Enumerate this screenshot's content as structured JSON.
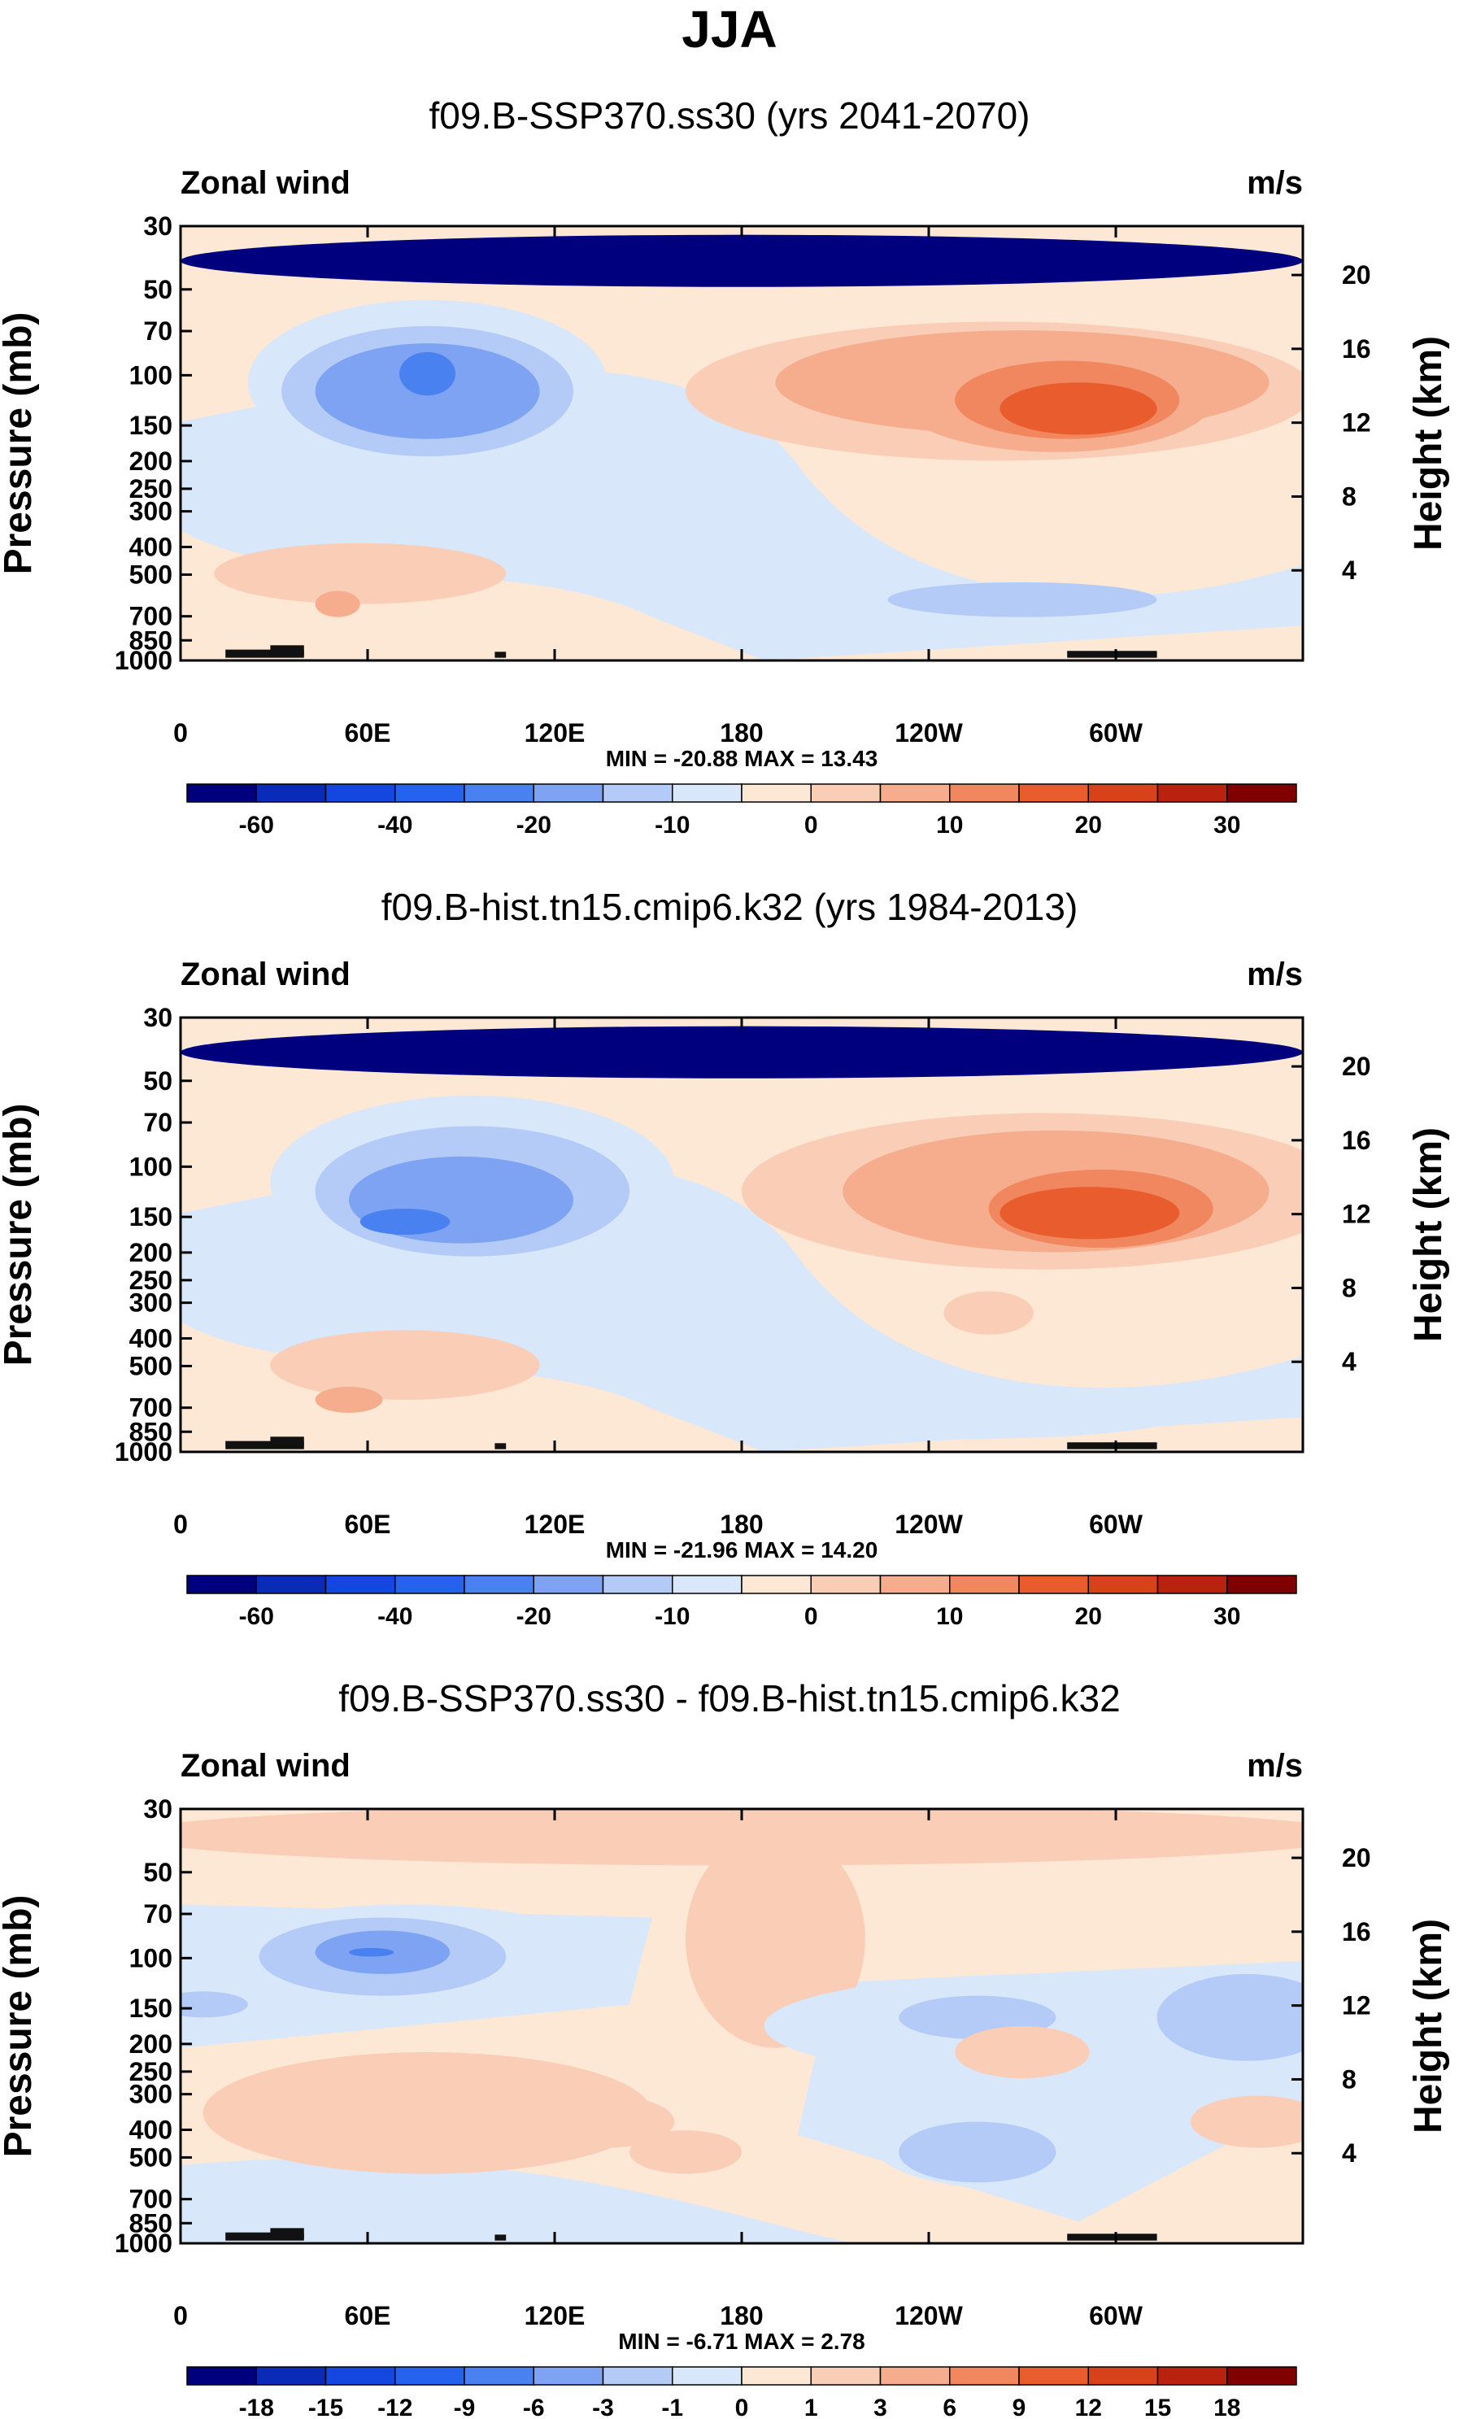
{
  "figure_title": "JJA",
  "chart_data": [
    {
      "type": "contour",
      "title": "f09.B-SSP370.ss30 (yrs 2041-2070)",
      "variable_label": "Zonal wind",
      "units_label": "m/s",
      "xlabel": "",
      "ylabel": "Pressure (mb)",
      "y2label": "Height (km)",
      "x_ticks": [
        "0",
        "60E",
        "120E",
        "180",
        "120W",
        "60W"
      ],
      "y_ticks": [
        "30",
        "50",
        "70",
        "100",
        "150",
        "200",
        "250",
        "300",
        "400",
        "500",
        "700",
        "850",
        "1000"
      ],
      "y2_ticks": [
        "20",
        "16",
        "12",
        "8",
        "4"
      ],
      "min_max_label": "MIN = -20.88  MAX = 13.43",
      "min": -20.88,
      "max": 13.43,
      "colorbar_ticks": [
        "-60",
        "-40",
        "-20",
        "-10",
        "0",
        "10",
        "20",
        "30"
      ]
    },
    {
      "type": "contour",
      "title": "f09.B-hist.tn15.cmip6.k32 (yrs 1984-2013)",
      "variable_label": "Zonal wind",
      "units_label": "m/s",
      "xlabel": "",
      "ylabel": "Pressure (mb)",
      "y2label": "Height (km)",
      "x_ticks": [
        "0",
        "60E",
        "120E",
        "180",
        "120W",
        "60W"
      ],
      "y_ticks": [
        "30",
        "50",
        "70",
        "100",
        "150",
        "200",
        "250",
        "300",
        "400",
        "500",
        "700",
        "850",
        "1000"
      ],
      "y2_ticks": [
        "20",
        "16",
        "12",
        "8",
        "4"
      ],
      "min_max_label": "MIN = -21.96  MAX = 14.20",
      "min": -21.96,
      "max": 14.2,
      "colorbar_ticks": [
        "-60",
        "-40",
        "-20",
        "-10",
        "0",
        "10",
        "20",
        "30"
      ]
    },
    {
      "type": "contour",
      "title": "f09.B-SSP370.ss30 - f09.B-hist.tn15.cmip6.k32",
      "variable_label": "Zonal wind",
      "units_label": "m/s",
      "xlabel": "",
      "ylabel": "Pressure (mb)",
      "y2label": "Height (km)",
      "x_ticks": [
        "0",
        "60E",
        "120E",
        "180",
        "120W",
        "60W"
      ],
      "y_ticks": [
        "30",
        "50",
        "70",
        "100",
        "150",
        "200",
        "250",
        "300",
        "400",
        "500",
        "700",
        "850",
        "1000"
      ],
      "y2_ticks": [
        "20",
        "16",
        "12",
        "8",
        "4"
      ],
      "min_max_label": "MIN = -6.71  MAX =  2.78",
      "min": -6.71,
      "max": 2.78,
      "colorbar_ticks": [
        "-18",
        "-15",
        "-12",
        "-9",
        "-6",
        "-3",
        "-1",
        "0",
        "1",
        "3",
        "6",
        "9",
        "12",
        "15",
        "18"
      ]
    }
  ],
  "colorbar_colors": [
    "#00007f",
    "#0a2ab8",
    "#1447e0",
    "#2563ee",
    "#4a81f0",
    "#7da3f2",
    "#b3cbf6",
    "#d8e7fa",
    "#fde8d6",
    "#f9cdb6",
    "#f5ad8e",
    "#f0875f",
    "#e85c2e",
    "#d8421a",
    "#b8220f",
    "#800000"
  ]
}
